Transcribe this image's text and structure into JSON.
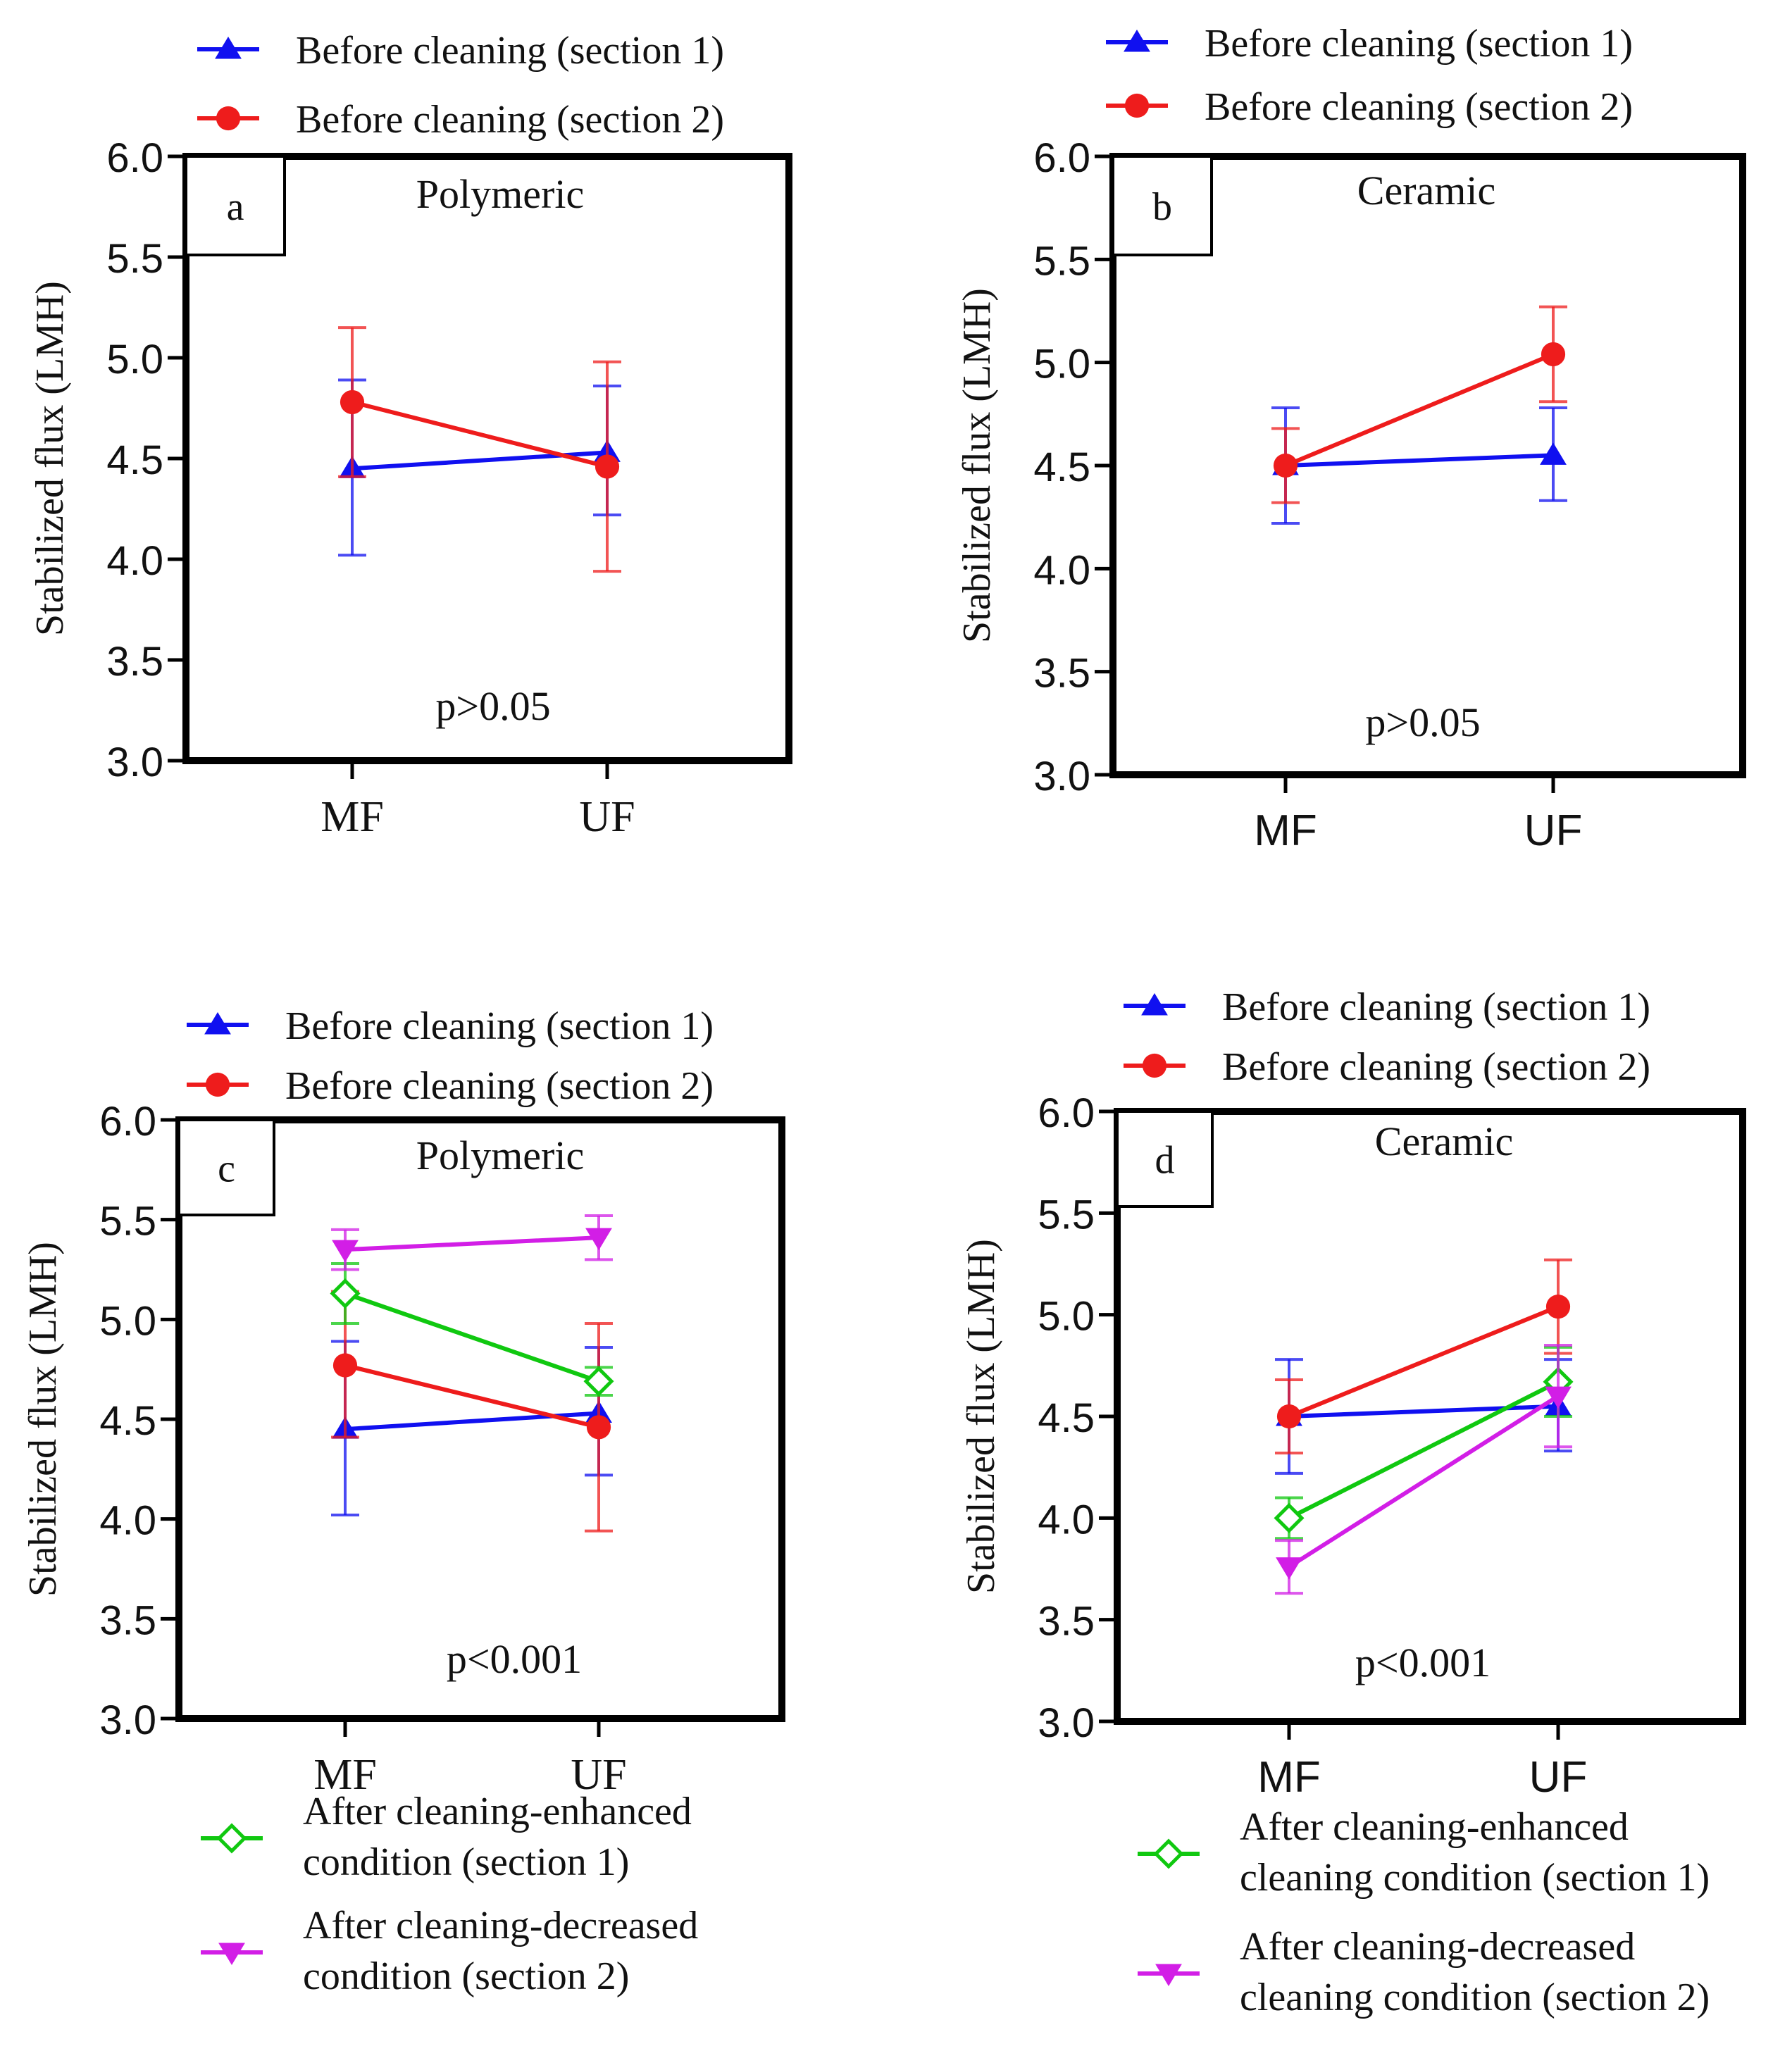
{
  "colors": {
    "blue": "#1010f0",
    "red": "#ee1c1c",
    "green": "#10c810",
    "magenta": "#d21ee6",
    "frame": "#000000"
  },
  "chart_data": [
    {
      "type": "line",
      "panel_label": "a",
      "title": "Polymeric",
      "annotation": "p>0.05",
      "ylabel": "Stabilized flux (LMH)",
      "categories": [
        "MF",
        "UF"
      ],
      "ylim": [
        3.0,
        6.0
      ],
      "yticks": [
        "3.0",
        "3.5",
        "4.0",
        "4.5",
        "5.0",
        "5.5",
        "6.0"
      ],
      "legend_position": "top",
      "series": [
        {
          "name": "Before cleaning (section 1)",
          "marker": "triangle-up",
          "color": "blue",
          "values": [
            4.45,
            4.53
          ],
          "err_low": [
            4.02,
            4.22
          ],
          "err_high": [
            4.89,
            4.86
          ]
        },
        {
          "name": "Before cleaning (section 2)",
          "marker": "circle",
          "color": "red",
          "values": [
            4.78,
            4.46
          ],
          "err_low": [
            4.41,
            3.94
          ],
          "err_high": [
            5.15,
            4.98
          ]
        }
      ]
    },
    {
      "type": "line",
      "panel_label": "b",
      "title": "Ceramic",
      "annotation": "p>0.05",
      "ylabel": "Stabilized flux (LMH)",
      "categories": [
        "MF",
        "UF"
      ],
      "ylim": [
        3.0,
        6.0
      ],
      "yticks": [
        "3.0",
        "3.5",
        "4.0",
        "4.5",
        "5.0",
        "5.5",
        "6.0"
      ],
      "legend_position": "top",
      "series": [
        {
          "name": "Before cleaning (section 1)",
          "marker": "triangle-up",
          "color": "blue",
          "values": [
            4.5,
            4.55
          ],
          "err_low": [
            4.22,
            4.33
          ],
          "err_high": [
            4.78,
            4.78
          ]
        },
        {
          "name": "Before cleaning (section 2)",
          "marker": "circle",
          "color": "red",
          "values": [
            4.5,
            5.04
          ],
          "err_low": [
            4.32,
            4.81
          ],
          "err_high": [
            4.68,
            5.27
          ]
        }
      ]
    },
    {
      "type": "line",
      "panel_label": "c",
      "title": "Polymeric",
      "annotation": "p<0.001",
      "ylabel": "Stabilized flux (LMH)",
      "categories": [
        "MF",
        "UF"
      ],
      "ylim": [
        3.0,
        6.0
      ],
      "yticks": [
        "3.0",
        "3.5",
        "4.0",
        "4.5",
        "5.0",
        "5.5",
        "6.0"
      ],
      "legend_position": "top and bottom",
      "series": [
        {
          "name": "Before cleaning (section 1)",
          "marker": "triangle-up",
          "color": "blue",
          "values": [
            4.45,
            4.53
          ],
          "err_low": [
            4.02,
            4.22
          ],
          "err_high": [
            4.89,
            4.86
          ]
        },
        {
          "name": "Before cleaning (section 2)",
          "marker": "circle",
          "color": "red",
          "values": [
            4.77,
            4.46
          ],
          "err_low": [
            4.41,
            3.94
          ],
          "err_high": [
            5.14,
            4.98
          ]
        },
        {
          "name": "After cleaning-enhanced condition (section 1)",
          "name_lines": [
            "After cleaning-enhanced",
            "condition (section 1)"
          ],
          "marker": "diamond-open",
          "color": "green",
          "values": [
            5.13,
            4.69
          ],
          "err_low": [
            4.98,
            4.62
          ],
          "err_high": [
            5.28,
            4.76
          ]
        },
        {
          "name": "After cleaning-decreased condition (section 2)",
          "name_lines": [
            "After cleaning-decreased",
            "condition (section 2)"
          ],
          "marker": "triangle-down",
          "color": "magenta",
          "values": [
            5.35,
            5.41
          ],
          "err_low": [
            5.25,
            5.3
          ],
          "err_high": [
            5.45,
            5.52
          ]
        }
      ]
    },
    {
      "type": "line",
      "panel_label": "d",
      "title": "Ceramic",
      "annotation": "p<0.001",
      "ylabel": "Stabilized flux (LMH)",
      "categories": [
        "MF",
        "UF"
      ],
      "ylim": [
        3.0,
        6.0
      ],
      "yticks": [
        "3.0",
        "3.5",
        "4.0",
        "4.5",
        "5.0",
        "5.5",
        "6.0"
      ],
      "legend_position": "top and bottom",
      "series": [
        {
          "name": "Before cleaning (section 1)",
          "marker": "triangle-up",
          "color": "blue",
          "values": [
            4.5,
            4.55
          ],
          "err_low": [
            4.22,
            4.33
          ],
          "err_high": [
            4.78,
            4.78
          ]
        },
        {
          "name": "Before cleaning (section 2)",
          "marker": "circle",
          "color": "red",
          "values": [
            4.5,
            5.04
          ],
          "err_low": [
            4.32,
            4.81
          ],
          "err_high": [
            4.68,
            5.27
          ]
        },
        {
          "name": "After cleaning-enhanced cleaning condition (section 1)",
          "name_lines": [
            "After cleaning-enhanced",
            "cleaning condition (section 1)"
          ],
          "marker": "diamond-open",
          "color": "green",
          "values": [
            4.0,
            4.67
          ],
          "err_low": [
            3.9,
            4.5
          ],
          "err_high": [
            4.1,
            4.84
          ]
        },
        {
          "name": "After cleaning-decreased cleaning condition (section 2)",
          "name_lines": [
            "After cleaning-decreased",
            "cleaning condition (section 2)"
          ],
          "marker": "triangle-down",
          "color": "magenta",
          "values": [
            3.76,
            4.6
          ],
          "err_low": [
            3.63,
            4.35
          ],
          "err_high": [
            3.89,
            4.85
          ]
        }
      ]
    }
  ]
}
